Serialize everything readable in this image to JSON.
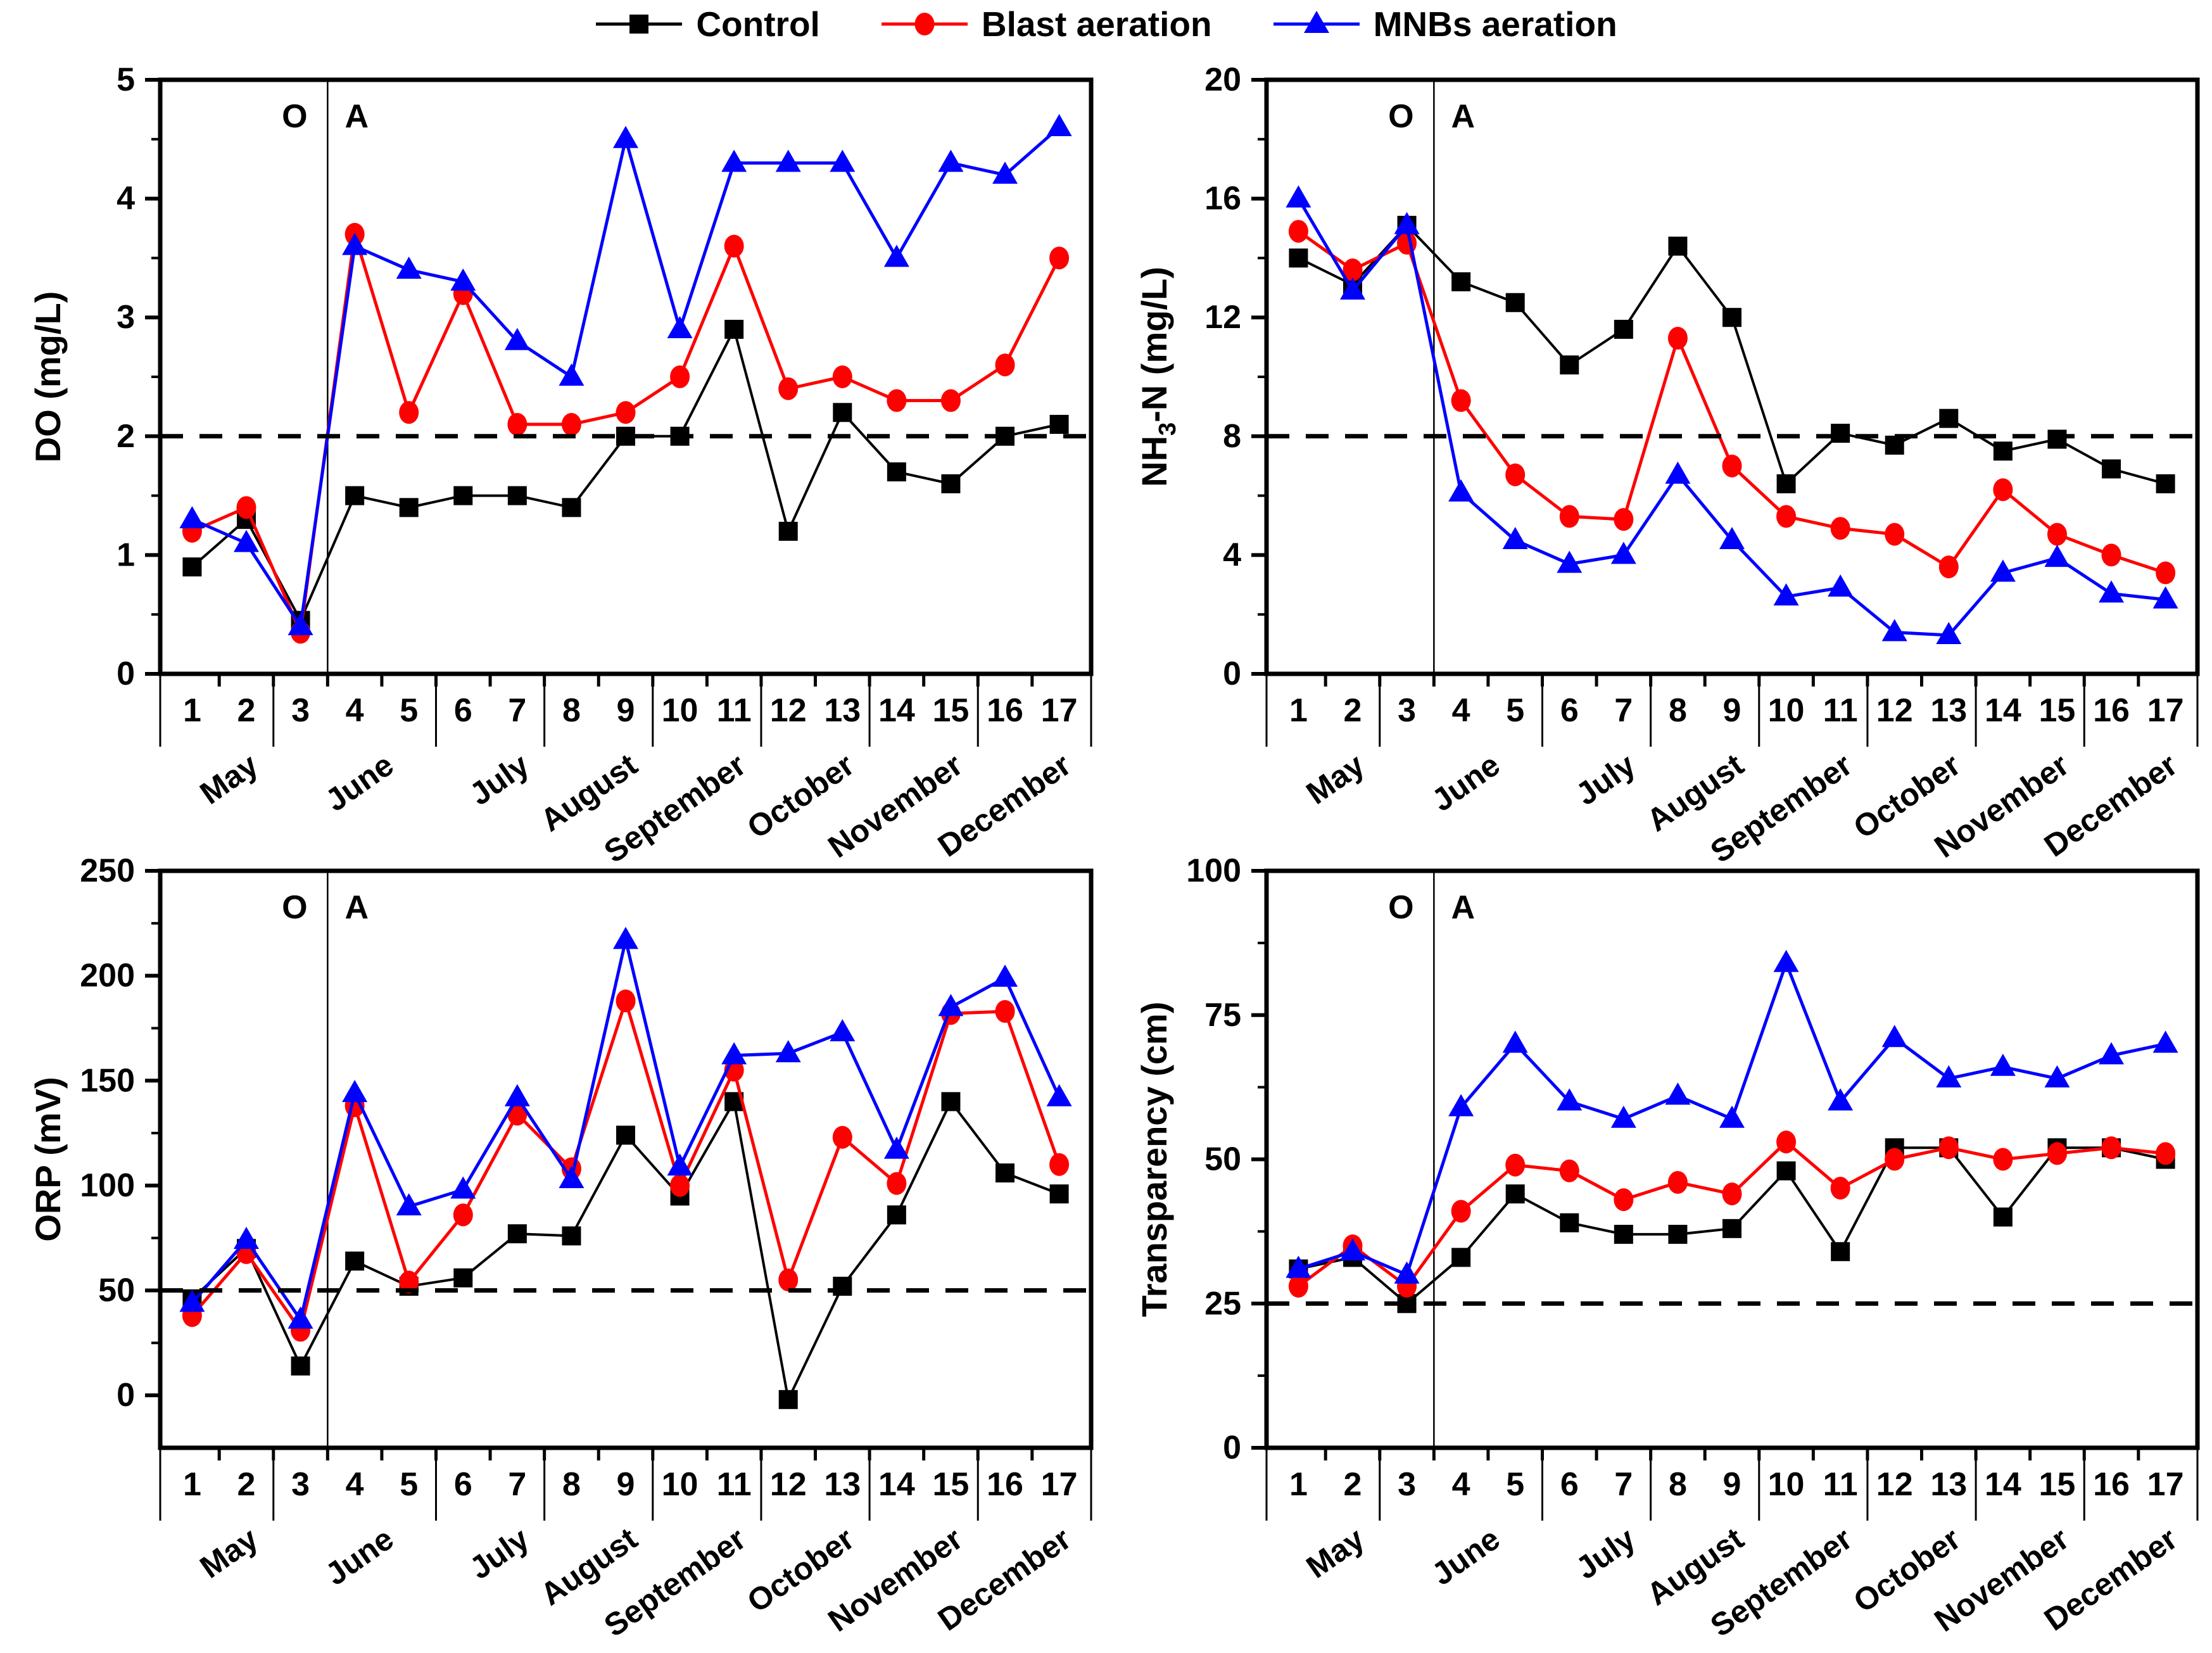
{
  "figure": {
    "background": "#FFFFFF"
  },
  "legend": {
    "items": [
      {
        "label": "Control",
        "color": "#000000",
        "marker": "square"
      },
      {
        "label": "Blast aeration",
        "color": "#FF0000",
        "marker": "circle"
      },
      {
        "label": "MNBs aeration",
        "color": "#0000FF",
        "marker": "triangle"
      }
    ]
  },
  "x_axis": {
    "point_labels": [
      "1",
      "2",
      "3",
      "4",
      "5",
      "6",
      "7",
      "8",
      "9",
      "10",
      "11",
      "12",
      "13",
      "14",
      "15",
      "16",
      "17"
    ],
    "month_groups": [
      {
        "label": "May",
        "count": 2
      },
      {
        "label": "June",
        "count": 3
      },
      {
        "label": "July",
        "count": 2
      },
      {
        "label": "August",
        "count": 2
      },
      {
        "label": "September",
        "count": 2
      },
      {
        "label": "October",
        "count": 2
      },
      {
        "label": "November",
        "count": 2
      },
      {
        "label": "December",
        "count": 2
      }
    ],
    "aeration_divider": {
      "between_points": [
        "3",
        "4"
      ],
      "before_label": "O",
      "after_label": "A"
    }
  },
  "chart_data": [
    {
      "id": "do",
      "type": "line",
      "ylabel": "DO (mg/L)",
      "ylabel_parts": [
        {
          "t": "DO (mg/L)"
        }
      ],
      "ylim": [
        0,
        5
      ],
      "yticks": [
        0,
        1,
        2,
        3,
        4,
        5
      ],
      "ref_line": 2,
      "grid": false,
      "legend_position": "top-center",
      "categories": [
        "1",
        "2",
        "3",
        "4",
        "5",
        "6",
        "7",
        "8",
        "9",
        "10",
        "11",
        "12",
        "13",
        "14",
        "15",
        "16",
        "17"
      ],
      "series": [
        {
          "name": "Control",
          "color": "#000000",
          "marker": "square",
          "values": [
            0.9,
            1.3,
            0.45,
            1.5,
            1.4,
            1.5,
            1.5,
            1.4,
            2.0,
            2.0,
            2.9,
            1.2,
            2.2,
            1.7,
            1.6,
            2.0,
            2.1
          ]
        },
        {
          "name": "Blast aeration",
          "color": "#FF0000",
          "marker": "circle",
          "values": [
            1.2,
            1.4,
            0.35,
            3.7,
            2.2,
            3.2,
            2.1,
            2.1,
            2.2,
            2.5,
            3.6,
            2.4,
            2.5,
            2.3,
            2.3,
            2.6,
            3.5
          ]
        },
        {
          "name": "MNBs aeration",
          "color": "#0000FF",
          "marker": "triangle",
          "values": [
            1.3,
            1.1,
            0.4,
            3.6,
            3.4,
            3.3,
            2.8,
            2.5,
            4.5,
            2.9,
            4.3,
            4.3,
            4.3,
            3.5,
            4.3,
            4.2,
            4.6
          ]
        }
      ]
    },
    {
      "id": "nh3n",
      "type": "line",
      "ylabel": "NH3-N (mg/L)",
      "ylabel_parts": [
        {
          "t": "NH"
        },
        {
          "t": "3",
          "sub": true
        },
        {
          "t": "-N (mg/L)"
        }
      ],
      "ylim": [
        0,
        20
      ],
      "yticks": [
        0,
        4,
        8,
        12,
        16,
        20
      ],
      "ref_line": 8,
      "grid": false,
      "categories": [
        "1",
        "2",
        "3",
        "4",
        "5",
        "6",
        "7",
        "8",
        "9",
        "10",
        "11",
        "12",
        "13",
        "14",
        "15",
        "16",
        "17"
      ],
      "series": [
        {
          "name": "Control",
          "color": "#000000",
          "marker": "square",
          "values": [
            14.0,
            13.1,
            15.1,
            13.2,
            12.5,
            10.4,
            11.6,
            14.4,
            12.0,
            6.4,
            8.1,
            7.7,
            8.6,
            7.5,
            7.9,
            6.9,
            6.4
          ]
        },
        {
          "name": "Blast aeration",
          "color": "#FF0000",
          "marker": "circle",
          "values": [
            14.9,
            13.6,
            14.5,
            9.2,
            6.7,
            5.3,
            5.2,
            11.3,
            7.0,
            5.3,
            4.9,
            4.7,
            3.6,
            6.2,
            4.7,
            4.0,
            3.4
          ]
        },
        {
          "name": "MNBs aeration",
          "color": "#0000FF",
          "marker": "triangle",
          "values": [
            16.0,
            12.9,
            15.1,
            6.1,
            4.5,
            3.7,
            4.0,
            6.7,
            4.5,
            2.6,
            2.9,
            1.4,
            1.3,
            3.4,
            3.9,
            2.7,
            2.5
          ]
        }
      ]
    },
    {
      "id": "orp",
      "type": "line",
      "ylabel": "ORP (mV)",
      "ylabel_parts": [
        {
          "t": "ORP (mV)"
        }
      ],
      "ylim": [
        -25,
        250
      ],
      "yticks": [
        0,
        50,
        100,
        150,
        200,
        250
      ],
      "ref_line": 50,
      "grid": false,
      "categories": [
        "1",
        "2",
        "3",
        "4",
        "5",
        "6",
        "7",
        "8",
        "9",
        "10",
        "11",
        "12",
        "13",
        "14",
        "15",
        "16",
        "17"
      ],
      "series": [
        {
          "name": "Control",
          "color": "#000000",
          "marker": "square",
          "values": [
            46,
            70,
            14,
            64,
            52,
            56,
            77,
            76,
            124,
            95,
            140,
            -2,
            52,
            86,
            140,
            106,
            96
          ]
        },
        {
          "name": "Blast aeration",
          "color": "#FF0000",
          "marker": "circle",
          "values": [
            38,
            68,
            31,
            138,
            54,
            86,
            134,
            108,
            188,
            100,
            155,
            55,
            123,
            101,
            182,
            183,
            110
          ]
        },
        {
          "name": "MNBs aeration",
          "color": "#0000FF",
          "marker": "triangle",
          "values": [
            44,
            74,
            36,
            144,
            90,
            98,
            142,
            103,
            217,
            109,
            162,
            163,
            173,
            117,
            185,
            199,
            142
          ]
        }
      ]
    },
    {
      "id": "transparency",
      "type": "line",
      "ylabel": "Transparency (cm)",
      "ylabel_parts": [
        {
          "t": "Transparency (cm)"
        }
      ],
      "ylim": [
        0,
        100
      ],
      "yticks": [
        0,
        25,
        50,
        75,
        100
      ],
      "ref_line": 25,
      "grid": false,
      "categories": [
        "1",
        "2",
        "3",
        "4",
        "5",
        "6",
        "7",
        "8",
        "9",
        "10",
        "11",
        "12",
        "13",
        "14",
        "15",
        "16",
        "17"
      ],
      "series": [
        {
          "name": "Control",
          "color": "#000000",
          "marker": "square",
          "values": [
            31,
            33,
            25,
            33,
            44,
            39,
            37,
            37,
            38,
            48,
            34,
            52,
            52,
            40,
            52,
            52,
            50
          ]
        },
        {
          "name": "Blast aeration",
          "color": "#FF0000",
          "marker": "circle",
          "values": [
            28,
            35,
            28,
            41,
            49,
            48,
            43,
            46,
            44,
            53,
            45,
            50,
            52,
            50,
            51,
            52,
            51
          ]
        },
        {
          "name": "MNBs aeration",
          "color": "#0000FF",
          "marker": "triangle",
          "values": [
            31,
            34,
            30,
            59,
            70,
            60,
            57,
            61,
            57,
            84,
            60,
            71,
            64,
            66,
            64,
            68,
            70
          ]
        }
      ]
    }
  ],
  "style": {
    "axis_color": "#000000",
    "ref_line_color": "#000000",
    "aeration_line_color": "#000000"
  }
}
